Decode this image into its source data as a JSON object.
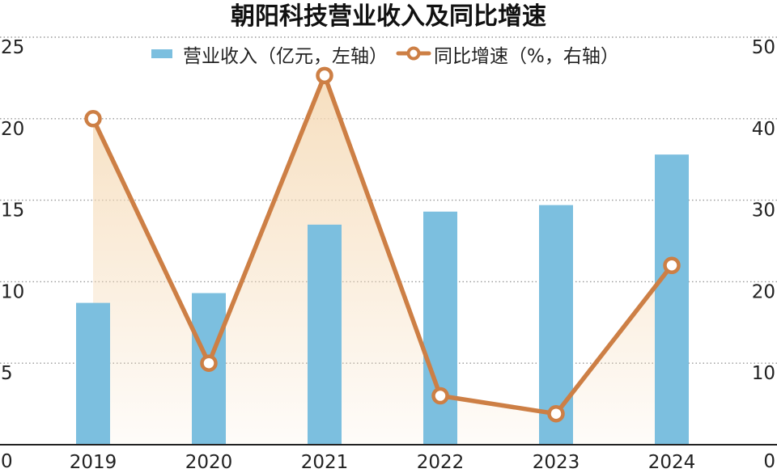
{
  "chart_data": {
    "type": "bar+line",
    "title": "朝阳科技营业收入及同比增速",
    "categories": [
      "2019",
      "2020",
      "2021",
      "2022",
      "2023",
      "2024"
    ],
    "series": [
      {
        "name": "营业收入（亿元，左轴）",
        "type": "bar",
        "axis": "left",
        "values": [
          8.7,
          9.3,
          13.5,
          14.3,
          14.7,
          17.8
        ]
      },
      {
        "name": "同比增速（%，右轴）",
        "type": "line",
        "axis": "right",
        "values": [
          40,
          10,
          45.3,
          6,
          3.8,
          22
        ]
      }
    ],
    "y_left": {
      "min": 0,
      "max": 25,
      "ticks": [
        "0",
        "5",
        "10",
        "15",
        "20",
        "25"
      ]
    },
    "y_right": {
      "min": 0,
      "max": 50,
      "ticks": [
        "0",
        "10",
        "20",
        "30",
        "40",
        "50"
      ]
    },
    "grid": "horizontal dotted",
    "legend_position": "top",
    "colors": {
      "bar": "#7cbfdf",
      "line": "#cd7f45",
      "area_top": "#f5d9b4",
      "grid": "#999999",
      "text": "#222222",
      "title": "#111111"
    }
  }
}
